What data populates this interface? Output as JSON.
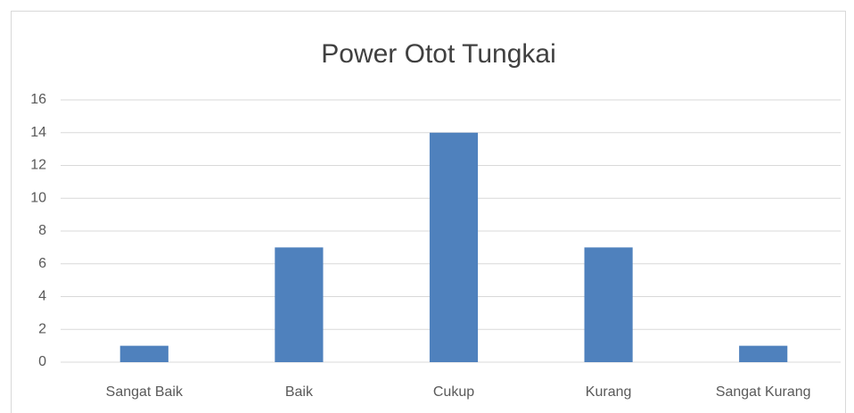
{
  "chart_data": {
    "type": "bar",
    "title": "Power Otot Tungkai",
    "categories": [
      "Sangat Baik",
      "Baik",
      "Cukup",
      "Kurang",
      "Sangat Kurang"
    ],
    "values": [
      1,
      7,
      14,
      7,
      1
    ],
    "color": "#4f81bd",
    "ylim": [
      0,
      16
    ],
    "yticks": [
      0,
      2,
      4,
      6,
      8,
      10,
      12,
      14,
      16
    ],
    "grid": true
  }
}
